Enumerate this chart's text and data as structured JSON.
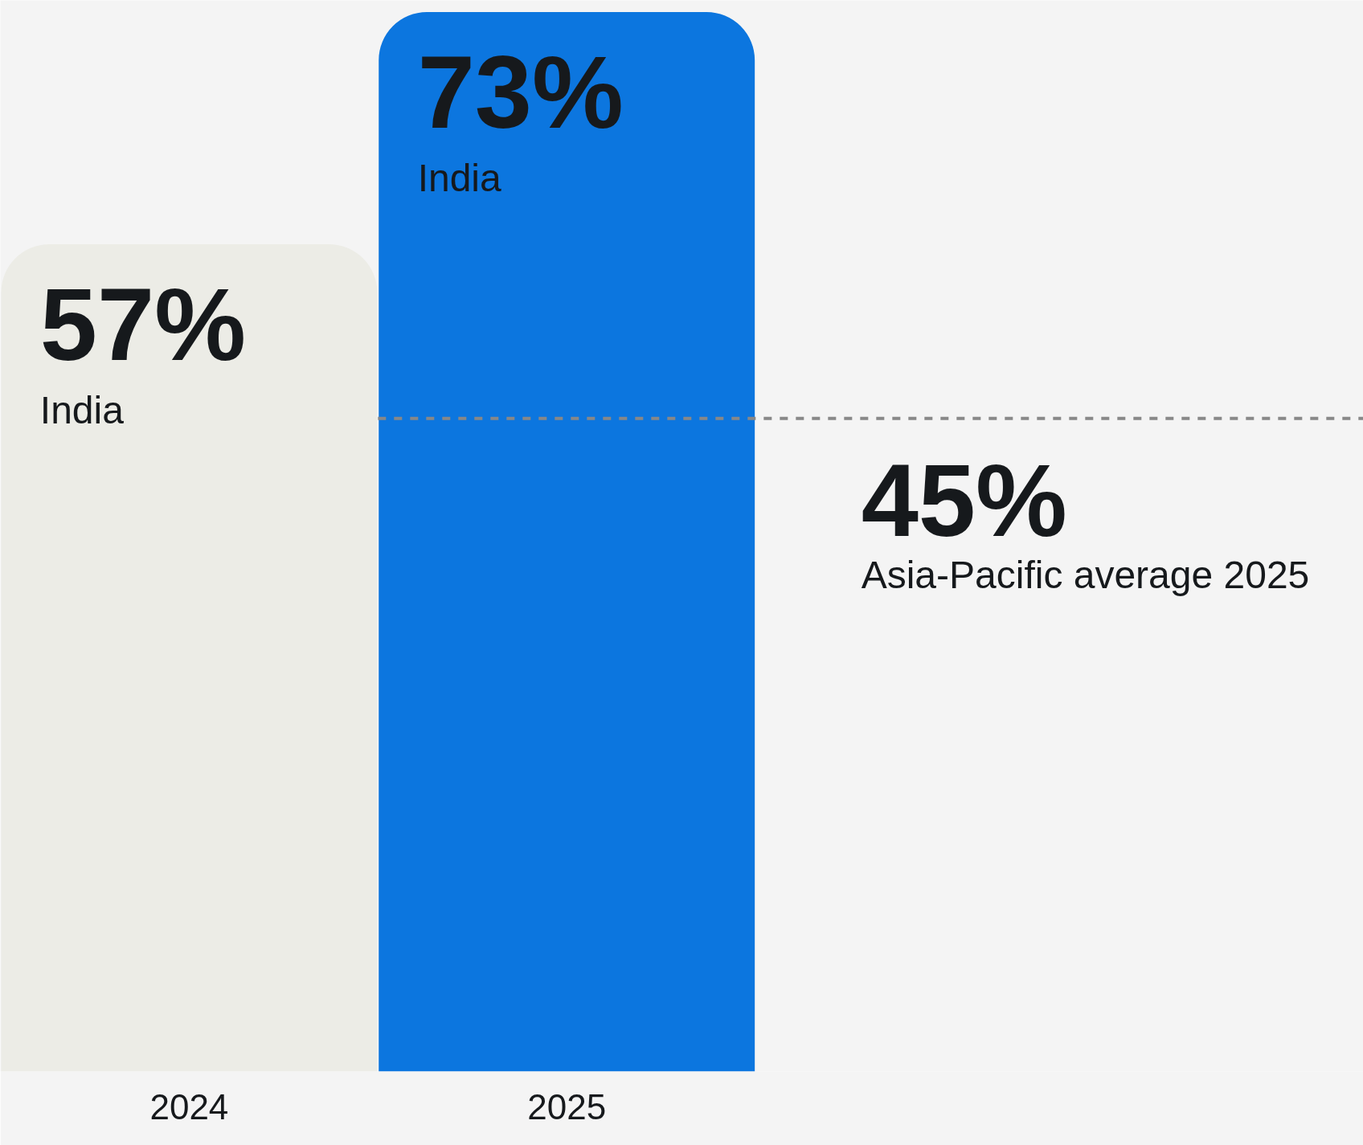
{
  "chart_data": {
    "type": "bar",
    "categories": [
      "2024",
      "2025"
    ],
    "values": [
      57,
      73
    ],
    "colors": [
      "#ecece6",
      "#0c76df"
    ],
    "value_labels": [
      "57%",
      "73%"
    ],
    "ref_lines": [
      {
        "axis": "y",
        "value": 45,
        "label": "45%",
        "color": "#888888",
        "line_style": "dashed"
      }
    ],
    "annotations": [
      "India",
      "India",
      "Asia-Pacific average 2025"
    ],
    "grid": false
  }
}
